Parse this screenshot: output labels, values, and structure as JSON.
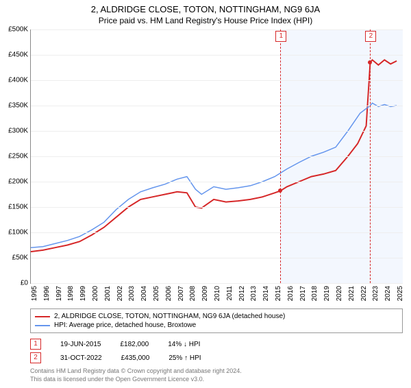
{
  "title": "2, ALDRIDGE CLOSE, TOTON, NOTTINGHAM, NG9 6JA",
  "subtitle": "Price paid vs. HM Land Registry's House Price Index (HPI)",
  "chart": {
    "type": "line",
    "background_color": "#ffffff",
    "grid_color": "#eeeeee",
    "axis_color": "#888888",
    "x": {
      "min": 1995,
      "max": 2025.5,
      "ticks": [
        1995,
        1996,
        1997,
        1998,
        1999,
        2000,
        2001,
        2002,
        2003,
        2004,
        2005,
        2006,
        2007,
        2008,
        2009,
        2010,
        2011,
        2012,
        2013,
        2014,
        2015,
        2016,
        2017,
        2018,
        2019,
        2020,
        2021,
        2022,
        2023,
        2024,
        2025
      ]
    },
    "y": {
      "min": 0,
      "max": 500000,
      "ticks": [
        0,
        50000,
        100000,
        150000,
        200000,
        250000,
        300000,
        350000,
        400000,
        450000,
        500000
      ],
      "prefix": "£",
      "suffix": "K",
      "divide": 1000
    },
    "shaded": {
      "from": 2015.47,
      "to": 2025.5,
      "color": "rgba(100,149,237,0.08)"
    },
    "series": [
      {
        "name": "price_paid",
        "color": "#d62728",
        "width": 2,
        "legend": "2, ALDRIDGE CLOSE, TOTON, NOTTINGHAM, NG9 6JA (detached house)",
        "points": [
          [
            1995,
            62000
          ],
          [
            1996,
            65000
          ],
          [
            1997,
            70000
          ],
          [
            1998,
            75000
          ],
          [
            1999,
            82000
          ],
          [
            2000,
            95000
          ],
          [
            2001,
            110000
          ],
          [
            2002,
            130000
          ],
          [
            2003,
            150000
          ],
          [
            2004,
            165000
          ],
          [
            2005,
            170000
          ],
          [
            2006,
            175000
          ],
          [
            2007,
            180000
          ],
          [
            2007.8,
            178000
          ],
          [
            2008.5,
            150000
          ],
          [
            2009,
            148000
          ],
          [
            2010,
            165000
          ],
          [
            2011,
            160000
          ],
          [
            2012,
            162000
          ],
          [
            2013,
            165000
          ],
          [
            2014,
            170000
          ],
          [
            2015,
            178000
          ],
          [
            2015.47,
            182000
          ],
          [
            2016,
            190000
          ],
          [
            2017,
            200000
          ],
          [
            2018,
            210000
          ],
          [
            2019,
            215000
          ],
          [
            2020,
            222000
          ],
          [
            2021,
            250000
          ],
          [
            2021.8,
            275000
          ],
          [
            2022.5,
            310000
          ],
          [
            2022.83,
            435000
          ],
          [
            2023,
            440000
          ],
          [
            2023.5,
            430000
          ],
          [
            2024,
            440000
          ],
          [
            2024.5,
            432000
          ],
          [
            2025,
            438000
          ]
        ]
      },
      {
        "name": "hpi",
        "color": "#6495ed",
        "width": 1.5,
        "legend": "HPI: Average price, detached house, Broxtowe",
        "points": [
          [
            1995,
            70000
          ],
          [
            1996,
            72000
          ],
          [
            1997,
            78000
          ],
          [
            1998,
            84000
          ],
          [
            1999,
            92000
          ],
          [
            2000,
            105000
          ],
          [
            2001,
            120000
          ],
          [
            2002,
            145000
          ],
          [
            2003,
            165000
          ],
          [
            2004,
            180000
          ],
          [
            2005,
            188000
          ],
          [
            2006,
            195000
          ],
          [
            2007,
            205000
          ],
          [
            2007.8,
            210000
          ],
          [
            2008.5,
            185000
          ],
          [
            2009,
            175000
          ],
          [
            2010,
            190000
          ],
          [
            2011,
            185000
          ],
          [
            2012,
            188000
          ],
          [
            2013,
            192000
          ],
          [
            2014,
            200000
          ],
          [
            2015,
            210000
          ],
          [
            2016,
            225000
          ],
          [
            2017,
            238000
          ],
          [
            2018,
            250000
          ],
          [
            2019,
            258000
          ],
          [
            2020,
            268000
          ],
          [
            2021,
            300000
          ],
          [
            2022,
            335000
          ],
          [
            2022.83,
            350000
          ],
          [
            2023,
            355000
          ],
          [
            2023.5,
            348000
          ],
          [
            2024,
            352000
          ],
          [
            2024.5,
            348000
          ],
          [
            2025,
            350000
          ]
        ]
      }
    ],
    "markers": [
      {
        "n": 1,
        "x": 2015.47,
        "y": 182000,
        "color": "#d62728"
      },
      {
        "n": 2,
        "x": 2022.83,
        "y": 435000,
        "color": "#d62728"
      }
    ]
  },
  "sales": [
    {
      "n": 1,
      "date": "19-JUN-2015",
      "price": "£182,000",
      "delta": "14% ↓ HPI",
      "color": "#d62728"
    },
    {
      "n": 2,
      "date": "31-OCT-2022",
      "price": "£435,000",
      "delta": "25% ↑ HPI",
      "color": "#d62728"
    }
  ],
  "footer": {
    "line1": "Contains HM Land Registry data © Crown copyright and database right 2024.",
    "line2": "This data is licensed under the Open Government Licence v3.0."
  }
}
